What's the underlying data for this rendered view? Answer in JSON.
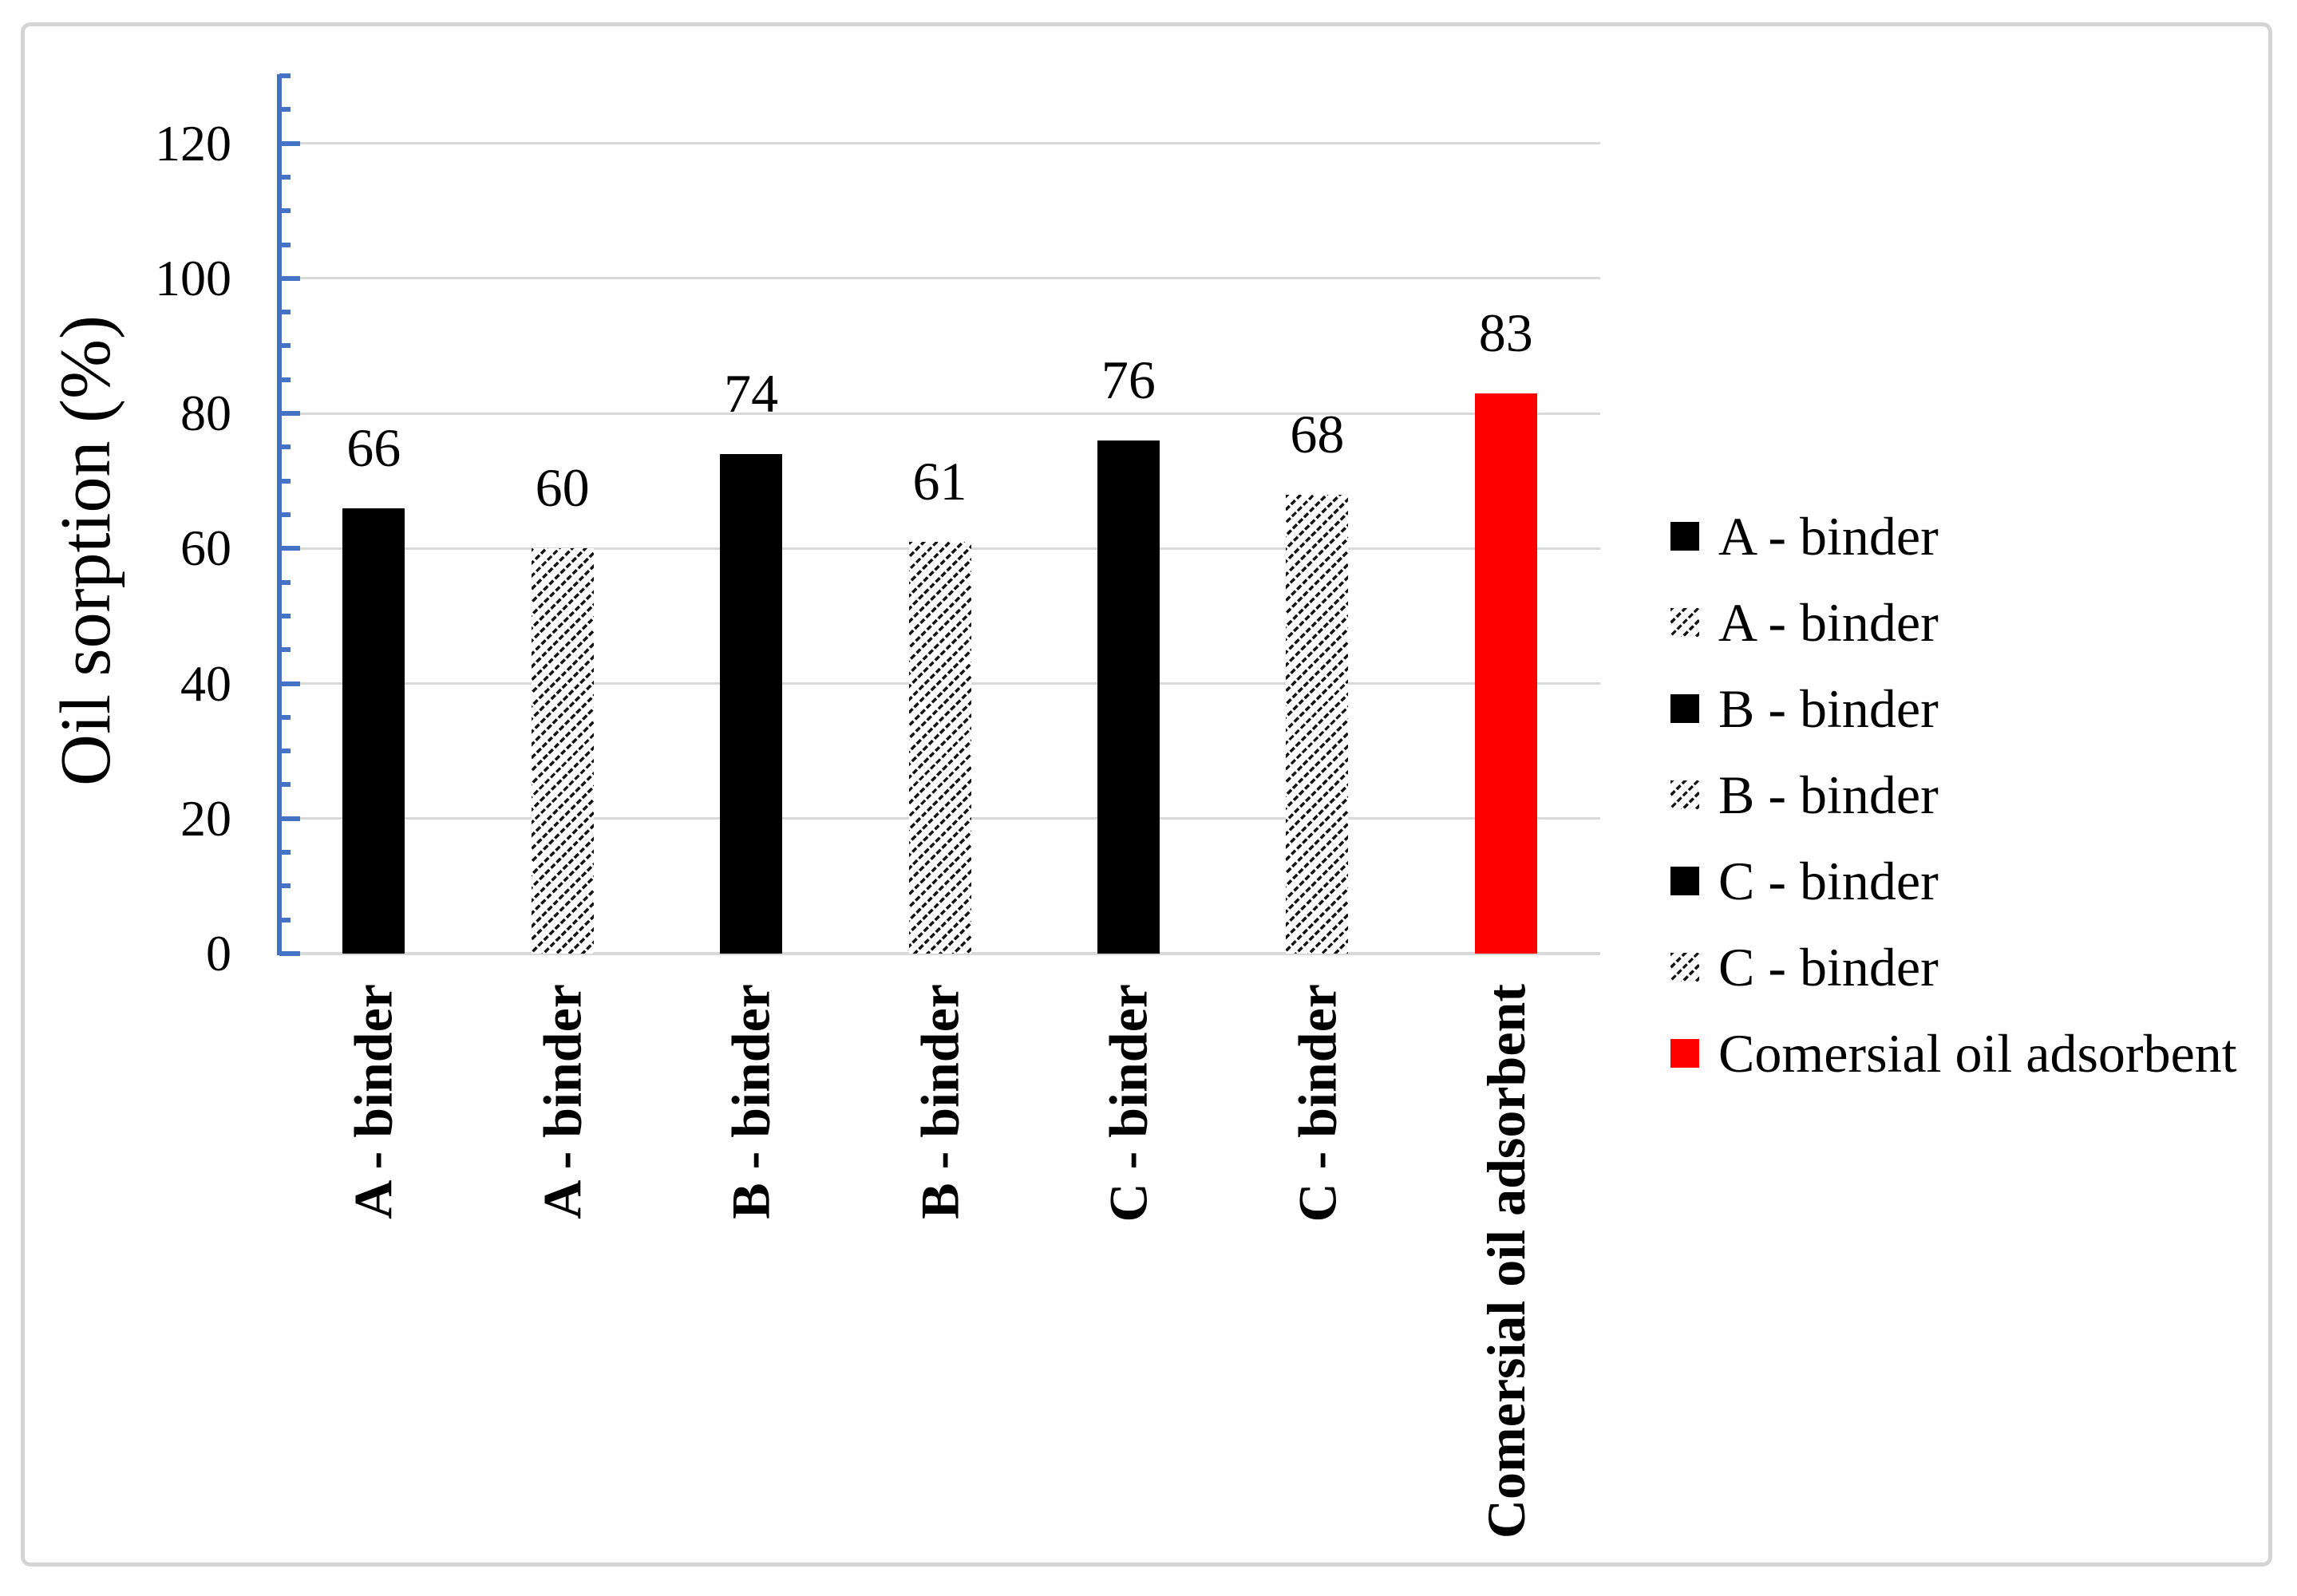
{
  "chart_data": {
    "type": "bar",
    "ylabel": "Oil sorption (%)",
    "ylim": [
      0,
      130
    ],
    "yticks_major": [
      0,
      20,
      40,
      60,
      80,
      100,
      120
    ],
    "minor_tick_step": 5,
    "major_tick_step": 20,
    "grid": true,
    "legend_position": "right",
    "categories": [
      "A - binder",
      "A - binder",
      "B - binder",
      "B - binder",
      "C - binder",
      "C - binder",
      "Comersial oil adsorbent"
    ],
    "values": [
      66,
      60,
      74,
      61,
      76,
      68,
      83
    ],
    "bar_styles": [
      "solid-black",
      "hatched",
      "solid-black",
      "hatched",
      "solid-black",
      "hatched",
      "solid-red"
    ],
    "legend": [
      {
        "label": "A - binder",
        "style": "solid-black"
      },
      {
        "label": "A - binder",
        "style": "hatched"
      },
      {
        "label": "B - binder",
        "style": "solid-black"
      },
      {
        "label": "B - binder",
        "style": "hatched"
      },
      {
        "label": "C - binder",
        "style": "solid-black"
      },
      {
        "label": "C - binder",
        "style": "hatched"
      },
      {
        "label": "Comersial oil adsorbent",
        "style": "solid-red"
      }
    ],
    "colors": {
      "bar_black": "#000000",
      "bar_red": "#FF0000",
      "axis_line": "#4472C4",
      "gridline": "#D9D9D9",
      "text": "#000000",
      "frame_border": "#D4D4D4"
    }
  }
}
